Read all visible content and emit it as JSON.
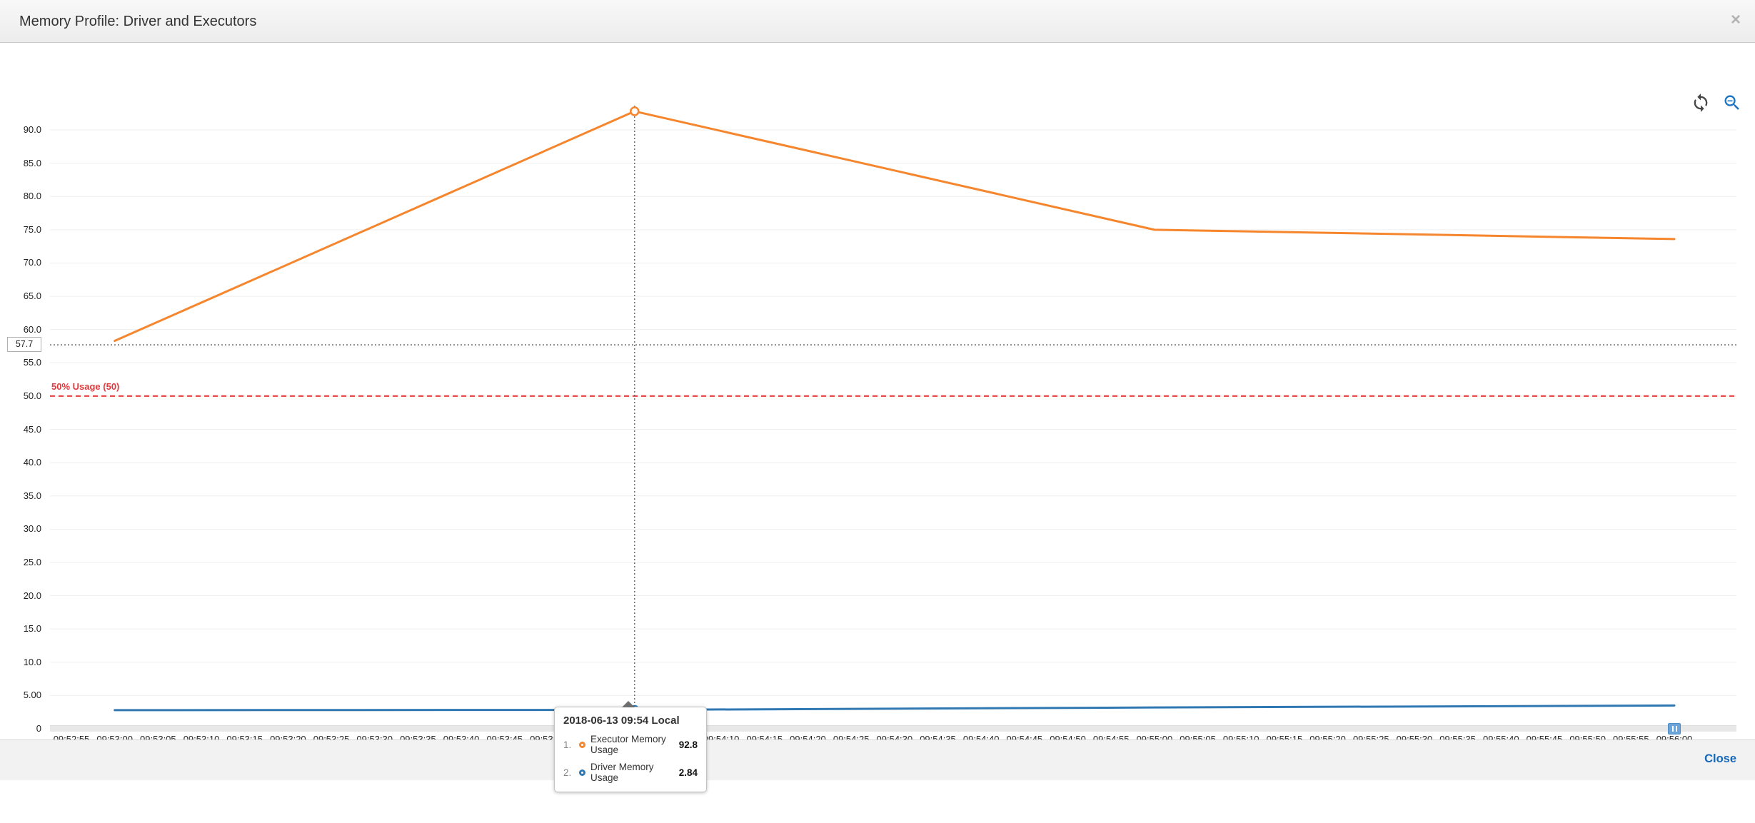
{
  "header": {
    "title": "Memory Profile: Driver and Executors",
    "close_icon": "×"
  },
  "toolbar": {
    "refresh_icon": "refresh",
    "zoom_out_icon": "zoom-out-magnifier"
  },
  "chart_data": {
    "type": "line",
    "title": "Memory Profile: Driver and Executors",
    "grid": true,
    "legend_position": "bottom-left",
    "ylim": [
      0,
      95.6
    ],
    "y_ticks": [
      {
        "label": "90.0",
        "value": 90
      },
      {
        "label": "85.0",
        "value": 85
      },
      {
        "label": "80.0",
        "value": 80
      },
      {
        "label": "75.0",
        "value": 75
      },
      {
        "label": "70.0",
        "value": 70
      },
      {
        "label": "65.0",
        "value": 65
      },
      {
        "label": "60.0",
        "value": 60
      },
      {
        "label": "55.0",
        "value": 55
      },
      {
        "label": "50.0",
        "value": 50
      },
      {
        "label": "45.0",
        "value": 45
      },
      {
        "label": "40.0",
        "value": 40
      },
      {
        "label": "35.0",
        "value": 35
      },
      {
        "label": "30.0",
        "value": 30
      },
      {
        "label": "25.0",
        "value": 25
      },
      {
        "label": "20.0",
        "value": 20
      },
      {
        "label": "15.0",
        "value": 15
      },
      {
        "label": "10.0",
        "value": 10
      },
      {
        "label": "5.00",
        "value": 5
      },
      {
        "label": "0",
        "value": 0
      }
    ],
    "x_ticks": [
      "09:52:55",
      "09:53:00",
      "09:53:05",
      "09:53:10",
      "09:53:15",
      "09:53:20",
      "09:53:25",
      "09:53:30",
      "09:53:35",
      "09:53:40",
      "09:53:45",
      "09:53:50",
      "09:53:55",
      "09:54:00",
      "09:54:05",
      "09:54:10",
      "09:54:15",
      "09:54:20",
      "09:54:25",
      "09:54:30",
      "09:54:35",
      "09:54:40",
      "09:54:45",
      "09:54:50",
      "09:54:55",
      "09:55:00",
      "09:55:05",
      "09:55:10",
      "09:55:15",
      "09:55:20",
      "09:55:25",
      "09:55:30",
      "09:55:35",
      "09:55:40",
      "09:55:45",
      "09:55:50",
      "09:55:55",
      "09:56:00"
    ],
    "x_highlight": {
      "index": 13,
      "label": "06-13 09:54"
    },
    "series": [
      {
        "name": "Driver Memory Usage",
        "color": "#3078b2",
        "x": [
          "09:53:00",
          "09:54:00",
          "09:55:00",
          "09:56:00"
        ],
        "x_tick_indices": [
          1,
          13,
          25,
          37
        ],
        "values": [
          2.8,
          2.84,
          3.2,
          3.5
        ],
        "marker_index": 1
      },
      {
        "name": "Executor Memory Usage",
        "color": "#f6862d",
        "x": [
          "09:53:00",
          "09:54:00",
          "09:55:00",
          "09:56:00"
        ],
        "x_tick_indices": [
          1,
          13,
          25,
          37
        ],
        "values": [
          58.3,
          92.8,
          75.0,
          73.6
        ],
        "marker_index": 1
      }
    ],
    "threshold": {
      "label": "50% Usage (50)",
      "value": 50,
      "color": "#e03a3e"
    },
    "crosshair": {
      "x_tick_index": 13,
      "y_value": 57.7,
      "y_axis_label": "57.7"
    }
  },
  "legend": {
    "items": [
      {
        "label": "Driver Memory Usage",
        "color": "#2e7cb5"
      },
      {
        "label": "Executor Memory Usage",
        "color": "#f58226"
      }
    ]
  },
  "tooltip": {
    "title": "2018-06-13 09:54 Local",
    "rows": [
      {
        "index": "1.",
        "name": "Executor Memory Usage",
        "value": "92.8",
        "color": "#f6862d"
      },
      {
        "index": "2.",
        "name": "Driver Memory Usage",
        "value": "2.84",
        "color": "#3078b2"
      }
    ]
  },
  "footer": {
    "close_label": "Close"
  }
}
